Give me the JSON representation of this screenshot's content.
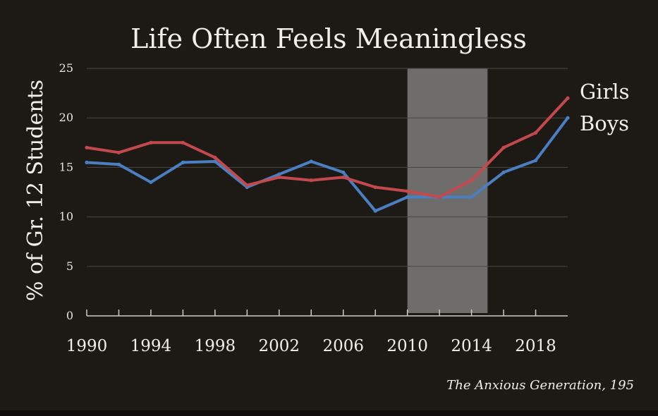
{
  "chart_data": {
    "type": "line",
    "title": "Life Often Feels Meaningless",
    "ylabel": "% of Gr. 12 Students",
    "xlabel": "",
    "xlim": [
      1990,
      2020
    ],
    "ylim": [
      0,
      25
    ],
    "x_ticks": [
      1990,
      1994,
      1998,
      2002,
      2006,
      2010,
      2014,
      2018
    ],
    "y_ticks": [
      0,
      5,
      10,
      15,
      20,
      25
    ],
    "grid": true,
    "legend": "right end labels",
    "highlight_band": {
      "from": 2010,
      "to": 2015
    },
    "x": [
      1990,
      1992,
      1994,
      1996,
      1998,
      2000,
      2002,
      2004,
      2006,
      2008,
      2010,
      2012,
      2014,
      2016,
      2018,
      2020
    ],
    "series": [
      {
        "name": "Girls",
        "color": "#c4494f",
        "values": [
          17,
          16.5,
          17.5,
          17.5,
          16,
          13.2,
          14,
          13.7,
          14,
          13,
          12.6,
          12,
          13.7,
          17,
          18.5,
          22
        ]
      },
      {
        "name": "Boys",
        "color": "#4a7fc1",
        "values": [
          15.5,
          15.3,
          13.5,
          15.5,
          15.6,
          13,
          14.3,
          15.6,
          14.5,
          10.6,
          12,
          12,
          12,
          14.5,
          15.7,
          20
        ]
      }
    ]
  },
  "source": "The Anxious Generation, 195",
  "colors": {
    "background": "#1d1a16",
    "band": "#6e6d6b",
    "grid": "#4a4640"
  }
}
